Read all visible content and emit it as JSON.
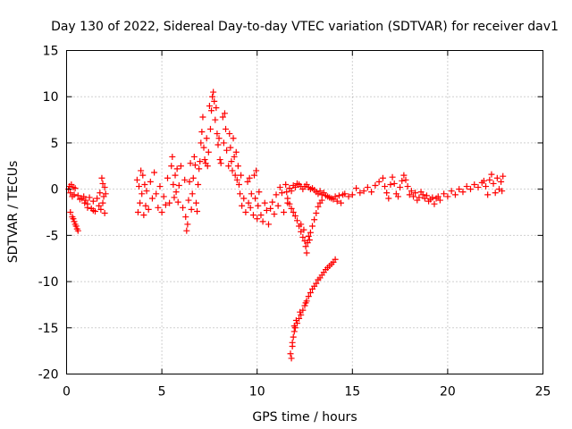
{
  "chart_data": {
    "type": "scatter",
    "title": "Day 130 of 2022, Sidereal Day-to-day VTEC variation (SDTVAR) for receiver dav1",
    "xlabel": "GPS time / hours",
    "ylabel": "SDTVAR / TECUs",
    "xlim": [
      0,
      25
    ],
    "ylim": [
      -20,
      15
    ],
    "xticks": [
      0,
      5,
      10,
      15,
      20,
      25
    ],
    "yticks": [
      -20,
      -15,
      -10,
      -5,
      0,
      5,
      10,
      15
    ],
    "grid": true,
    "marker": "+",
    "color": "#ff0000",
    "series": [
      {
        "name": "SDTVAR",
        "points": [
          [
            0.1,
            0.0
          ],
          [
            0.15,
            0.3
          ],
          [
            0.2,
            -0.4
          ],
          [
            0.25,
            0.5
          ],
          [
            0.3,
            -0.8
          ],
          [
            0.35,
            0.2
          ],
          [
            0.4,
            -0.6
          ],
          [
            0.45,
            0.1
          ],
          [
            0.2,
            -2.5
          ],
          [
            0.3,
            -3.0
          ],
          [
            0.4,
            -3.5
          ],
          [
            0.5,
            -4.0
          ],
          [
            0.55,
            -4.3
          ],
          [
            0.6,
            -4.5
          ],
          [
            0.35,
            -3.2
          ],
          [
            0.45,
            -3.8
          ],
          [
            0.6,
            -0.7
          ],
          [
            0.8,
            -1.0
          ],
          [
            0.9,
            -0.8
          ],
          [
            1.0,
            -1.2
          ],
          [
            1.1,
            -1.6
          ],
          [
            1.2,
            -0.9
          ],
          [
            1.3,
            -2.1
          ],
          [
            1.4,
            -1.3
          ],
          [
            1.5,
            -2.4
          ],
          [
            1.6,
            -1.0
          ],
          [
            1.7,
            -1.8
          ],
          [
            1.8,
            -2.2
          ],
          [
            1.9,
            -1.5
          ],
          [
            1.95,
            -0.8
          ],
          [
            2.0,
            0.2
          ],
          [
            2.05,
            -0.5
          ],
          [
            1.85,
            1.2
          ],
          [
            1.9,
            0.6
          ],
          [
            2.0,
            -2.6
          ],
          [
            1.75,
            -0.4
          ],
          [
            1.4,
            -2.3
          ],
          [
            1.1,
            -2.0
          ],
          [
            0.95,
            -1.5
          ],
          [
            0.7,
            -1.1
          ],
          [
            3.7,
            1.0
          ],
          [
            3.75,
            -2.5
          ],
          [
            3.8,
            0.3
          ],
          [
            3.85,
            -1.5
          ],
          [
            3.9,
            2.0
          ],
          [
            3.95,
            -0.5
          ],
          [
            4.0,
            1.5
          ],
          [
            4.05,
            -2.8
          ],
          [
            4.1,
            0.5
          ],
          [
            4.15,
            -1.8
          ],
          [
            4.2,
            -0.2
          ],
          [
            4.3,
            -2.2
          ],
          [
            4.4,
            0.8
          ],
          [
            4.5,
            -1.0
          ],
          [
            4.6,
            1.8
          ],
          [
            4.7,
            -0.5
          ],
          [
            4.8,
            -2.0
          ],
          [
            4.9,
            0.3
          ],
          [
            5.0,
            -2.5
          ],
          [
            5.1,
            -0.8
          ],
          [
            5.2,
            -1.7
          ],
          [
            5.3,
            1.2
          ],
          [
            5.4,
            -1.5
          ],
          [
            5.5,
            2.5
          ],
          [
            5.55,
            3.5
          ],
          [
            5.6,
            0.5
          ],
          [
            5.65,
            -0.9
          ],
          [
            5.7,
            1.5
          ],
          [
            5.75,
            -0.3
          ],
          [
            5.8,
            2.2
          ],
          [
            5.85,
            -1.4
          ],
          [
            5.9,
            0.4
          ],
          [
            6.0,
            2.5
          ],
          [
            6.1,
            -2.0
          ],
          [
            6.2,
            1.0
          ],
          [
            6.25,
            -3.0
          ],
          [
            6.3,
            -4.5
          ],
          [
            6.35,
            -3.8
          ],
          [
            6.4,
            -1.2
          ],
          [
            6.45,
            0.8
          ],
          [
            6.5,
            2.8
          ],
          [
            6.55,
            -2.2
          ],
          [
            6.6,
            -0.5
          ],
          [
            6.65,
            1.2
          ],
          [
            6.7,
            3.5
          ],
          [
            6.75,
            2.6
          ],
          [
            6.8,
            -1.5
          ],
          [
            6.85,
            -2.4
          ],
          [
            6.9,
            0.5
          ],
          [
            6.95,
            2.2
          ],
          [
            7.0,
            3.0
          ],
          [
            7.05,
            5.0
          ],
          [
            7.1,
            6.2
          ],
          [
            7.15,
            7.8
          ],
          [
            7.2,
            4.5
          ],
          [
            7.25,
            3.2
          ],
          [
            7.3,
            2.8
          ],
          [
            7.35,
            5.5
          ],
          [
            7.4,
            2.5
          ],
          [
            7.45,
            4.0
          ],
          [
            7.5,
            9.0
          ],
          [
            7.55,
            6.5
          ],
          [
            7.6,
            8.5
          ],
          [
            7.65,
            10.0
          ],
          [
            7.7,
            10.5
          ],
          [
            7.75,
            9.5
          ],
          [
            7.8,
            7.5
          ],
          [
            7.85,
            8.8
          ],
          [
            7.9,
            6.0
          ],
          [
            7.95,
            4.8
          ],
          [
            8.0,
            5.5
          ],
          [
            8.05,
            3.2
          ],
          [
            8.1,
            2.8
          ],
          [
            8.2,
            7.8
          ],
          [
            8.25,
            5.0
          ],
          [
            8.3,
            8.2
          ],
          [
            8.35,
            6.5
          ],
          [
            8.4,
            4.2
          ],
          [
            8.5,
            2.5
          ],
          [
            8.55,
            6.0
          ],
          [
            8.6,
            4.5
          ],
          [
            8.65,
            3.0
          ],
          [
            8.7,
            2.0
          ],
          [
            8.75,
            5.5
          ],
          [
            8.8,
            3.5
          ],
          [
            8.85,
            1.5
          ],
          [
            8.9,
            4.0
          ],
          [
            8.95,
            1.0
          ],
          [
            9.0,
            2.5
          ],
          [
            9.05,
            0.5
          ],
          [
            9.1,
            -0.5
          ],
          [
            9.15,
            1.5
          ],
          [
            9.2,
            -1.8
          ],
          [
            9.3,
            -1.0
          ],
          [
            9.4,
            -2.5
          ],
          [
            9.5,
            0.8
          ],
          [
            9.55,
            -1.5
          ],
          [
            9.6,
            1.2
          ],
          [
            9.65,
            -2.0
          ],
          [
            9.7,
            -0.5
          ],
          [
            9.8,
            -2.8
          ],
          [
            9.85,
            1.5
          ],
          [
            9.9,
            -1.0
          ],
          [
            9.95,
            2.0
          ],
          [
            10.0,
            -3.2
          ],
          [
            10.05,
            -1.8
          ],
          [
            10.1,
            -0.3
          ],
          [
            10.2,
            -2.8
          ],
          [
            10.3,
            -3.5
          ],
          [
            10.4,
            -1.5
          ],
          [
            10.5,
            -2.3
          ],
          [
            10.6,
            -3.8
          ],
          [
            10.7,
            -2.1
          ],
          [
            10.8,
            -1.4
          ],
          [
            10.9,
            -2.7
          ],
          [
            11.0,
            -0.6
          ],
          [
            11.1,
            -1.8
          ],
          [
            11.2,
            0.2
          ],
          [
            11.3,
            -0.4
          ],
          [
            11.4,
            -2.5
          ],
          [
            11.5,
            0.5
          ],
          [
            11.55,
            -0.3
          ],
          [
            11.6,
            -1.5
          ],
          [
            11.7,
            0.1
          ],
          [
            11.8,
            -0.2
          ],
          [
            11.9,
            0.4
          ],
          [
            12.0,
            0.2
          ],
          [
            12.1,
            0.6
          ],
          [
            12.2,
            0.5
          ],
          [
            12.3,
            0.3
          ],
          [
            12.4,
            0.0
          ],
          [
            12.5,
            0.3
          ],
          [
            12.6,
            0.5
          ],
          [
            12.7,
            0.2
          ],
          [
            12.8,
            0.0
          ],
          [
            12.9,
            0.1
          ],
          [
            13.0,
            -0.1
          ],
          [
            13.1,
            -0.3
          ],
          [
            13.2,
            -0.5
          ],
          [
            13.3,
            -0.2
          ],
          [
            13.4,
            -0.6
          ],
          [
            13.5,
            -0.4
          ],
          [
            13.6,
            -0.7
          ],
          [
            13.7,
            -0.8
          ],
          [
            13.8,
            -0.9
          ],
          [
            13.9,
            -1.0
          ],
          [
            14.0,
            -1.1
          ],
          [
            14.1,
            -0.8
          ],
          [
            14.2,
            -1.3
          ],
          [
            14.3,
            -0.7
          ],
          [
            14.4,
            -1.5
          ],
          [
            14.5,
            -0.6
          ],
          [
            11.6,
            -1.0
          ],
          [
            11.7,
            -1.6
          ],
          [
            11.8,
            -2.1
          ],
          [
            11.9,
            -2.5
          ],
          [
            12.0,
            -2.9
          ],
          [
            12.1,
            -3.4
          ],
          [
            12.2,
            -4.0
          ],
          [
            12.3,
            -4.6
          ],
          [
            12.4,
            -5.2
          ],
          [
            12.5,
            -5.6
          ],
          [
            12.55,
            -6.2
          ],
          [
            12.6,
            -6.9
          ],
          [
            12.65,
            -5.8
          ],
          [
            12.7,
            -5.1
          ],
          [
            12.8,
            -4.7
          ],
          [
            12.9,
            -4.0
          ],
          [
            13.0,
            -3.3
          ],
          [
            13.1,
            -2.6
          ],
          [
            13.2,
            -1.9
          ],
          [
            13.3,
            -1.5
          ],
          [
            13.4,
            -1.2
          ],
          [
            12.3,
            -3.8
          ],
          [
            12.45,
            -4.4
          ],
          [
            12.75,
            -5.5
          ],
          [
            11.75,
            -17.8
          ],
          [
            11.8,
            -18.3
          ],
          [
            11.85,
            -17.0
          ],
          [
            11.9,
            -16.0
          ],
          [
            11.95,
            -15.4
          ],
          [
            12.0,
            -15.0
          ],
          [
            12.1,
            -14.5
          ],
          [
            12.2,
            -14.0
          ],
          [
            12.3,
            -13.6
          ],
          [
            12.4,
            -13.1
          ],
          [
            12.5,
            -12.6
          ],
          [
            12.6,
            -12.1
          ],
          [
            12.7,
            -11.6
          ],
          [
            12.8,
            -11.2
          ],
          [
            12.9,
            -10.8
          ],
          [
            13.0,
            -10.5
          ],
          [
            13.1,
            -10.2
          ],
          [
            13.2,
            -9.8
          ],
          [
            13.3,
            -9.6
          ],
          [
            13.4,
            -9.3
          ],
          [
            13.5,
            -9.0
          ],
          [
            13.6,
            -8.7
          ],
          [
            13.7,
            -8.5
          ],
          [
            13.8,
            -8.3
          ],
          [
            13.9,
            -8.1
          ],
          [
            14.0,
            -7.9
          ],
          [
            14.1,
            -7.6
          ],
          [
            11.85,
            -16.6
          ],
          [
            11.95,
            -14.8
          ],
          [
            12.05,
            -14.2
          ],
          [
            12.25,
            -13.3
          ],
          [
            12.55,
            -12.3
          ],
          [
            14.6,
            -0.5
          ],
          [
            14.8,
            -0.8
          ],
          [
            15.0,
            -0.6
          ],
          [
            15.2,
            0.1
          ],
          [
            15.4,
            -0.4
          ],
          [
            15.6,
            -0.2
          ],
          [
            15.8,
            0.2
          ],
          [
            16.0,
            -0.3
          ],
          [
            16.2,
            0.4
          ],
          [
            16.4,
            0.8
          ],
          [
            16.6,
            1.2
          ],
          [
            16.7,
            0.3
          ],
          [
            16.8,
            -0.4
          ],
          [
            16.9,
            -1.0
          ],
          [
            17.0,
            0.5
          ],
          [
            17.1,
            1.3
          ],
          [
            17.2,
            0.6
          ],
          [
            17.3,
            -0.5
          ],
          [
            17.4,
            -0.8
          ],
          [
            17.5,
            0.2
          ],
          [
            17.6,
            0.9
          ],
          [
            17.7,
            1.5
          ],
          [
            17.8,
            1.0
          ],
          [
            17.9,
            0.3
          ],
          [
            18.0,
            -0.6
          ],
          [
            18.1,
            -0.2
          ],
          [
            18.2,
            -0.8
          ],
          [
            18.3,
            -0.4
          ],
          [
            18.4,
            -1.2
          ],
          [
            18.5,
            -0.9
          ],
          [
            18.6,
            -0.3
          ],
          [
            18.7,
            -0.6
          ],
          [
            18.8,
            -1.0
          ],
          [
            18.9,
            -0.7
          ],
          [
            19.0,
            -1.3
          ],
          [
            19.1,
            -1.1
          ],
          [
            19.2,
            -0.9
          ],
          [
            19.3,
            -1.6
          ],
          [
            19.4,
            -1.0
          ],
          [
            19.5,
            -0.8
          ],
          [
            19.6,
            -1.2
          ],
          [
            19.8,
            -0.5
          ],
          [
            20.0,
            -0.8
          ],
          [
            20.2,
            -0.2
          ],
          [
            20.4,
            -0.6
          ],
          [
            20.6,
            0.0
          ],
          [
            20.8,
            -0.3
          ],
          [
            21.0,
            0.3
          ],
          [
            21.2,
            0.0
          ],
          [
            21.4,
            0.5
          ],
          [
            21.6,
            0.2
          ],
          [
            21.8,
            0.7
          ],
          [
            22.0,
            0.3
          ],
          [
            22.2,
            1.0
          ],
          [
            22.4,
            0.6
          ],
          [
            22.6,
            1.2
          ],
          [
            22.8,
            0.8
          ],
          [
            22.9,
            1.4
          ],
          [
            22.85,
            -0.2
          ],
          [
            22.7,
            0.0
          ],
          [
            22.5,
            -0.4
          ],
          [
            22.3,
            1.6
          ],
          [
            22.1,
            -0.6
          ],
          [
            21.9,
            0.9
          ]
        ]
      }
    ]
  }
}
